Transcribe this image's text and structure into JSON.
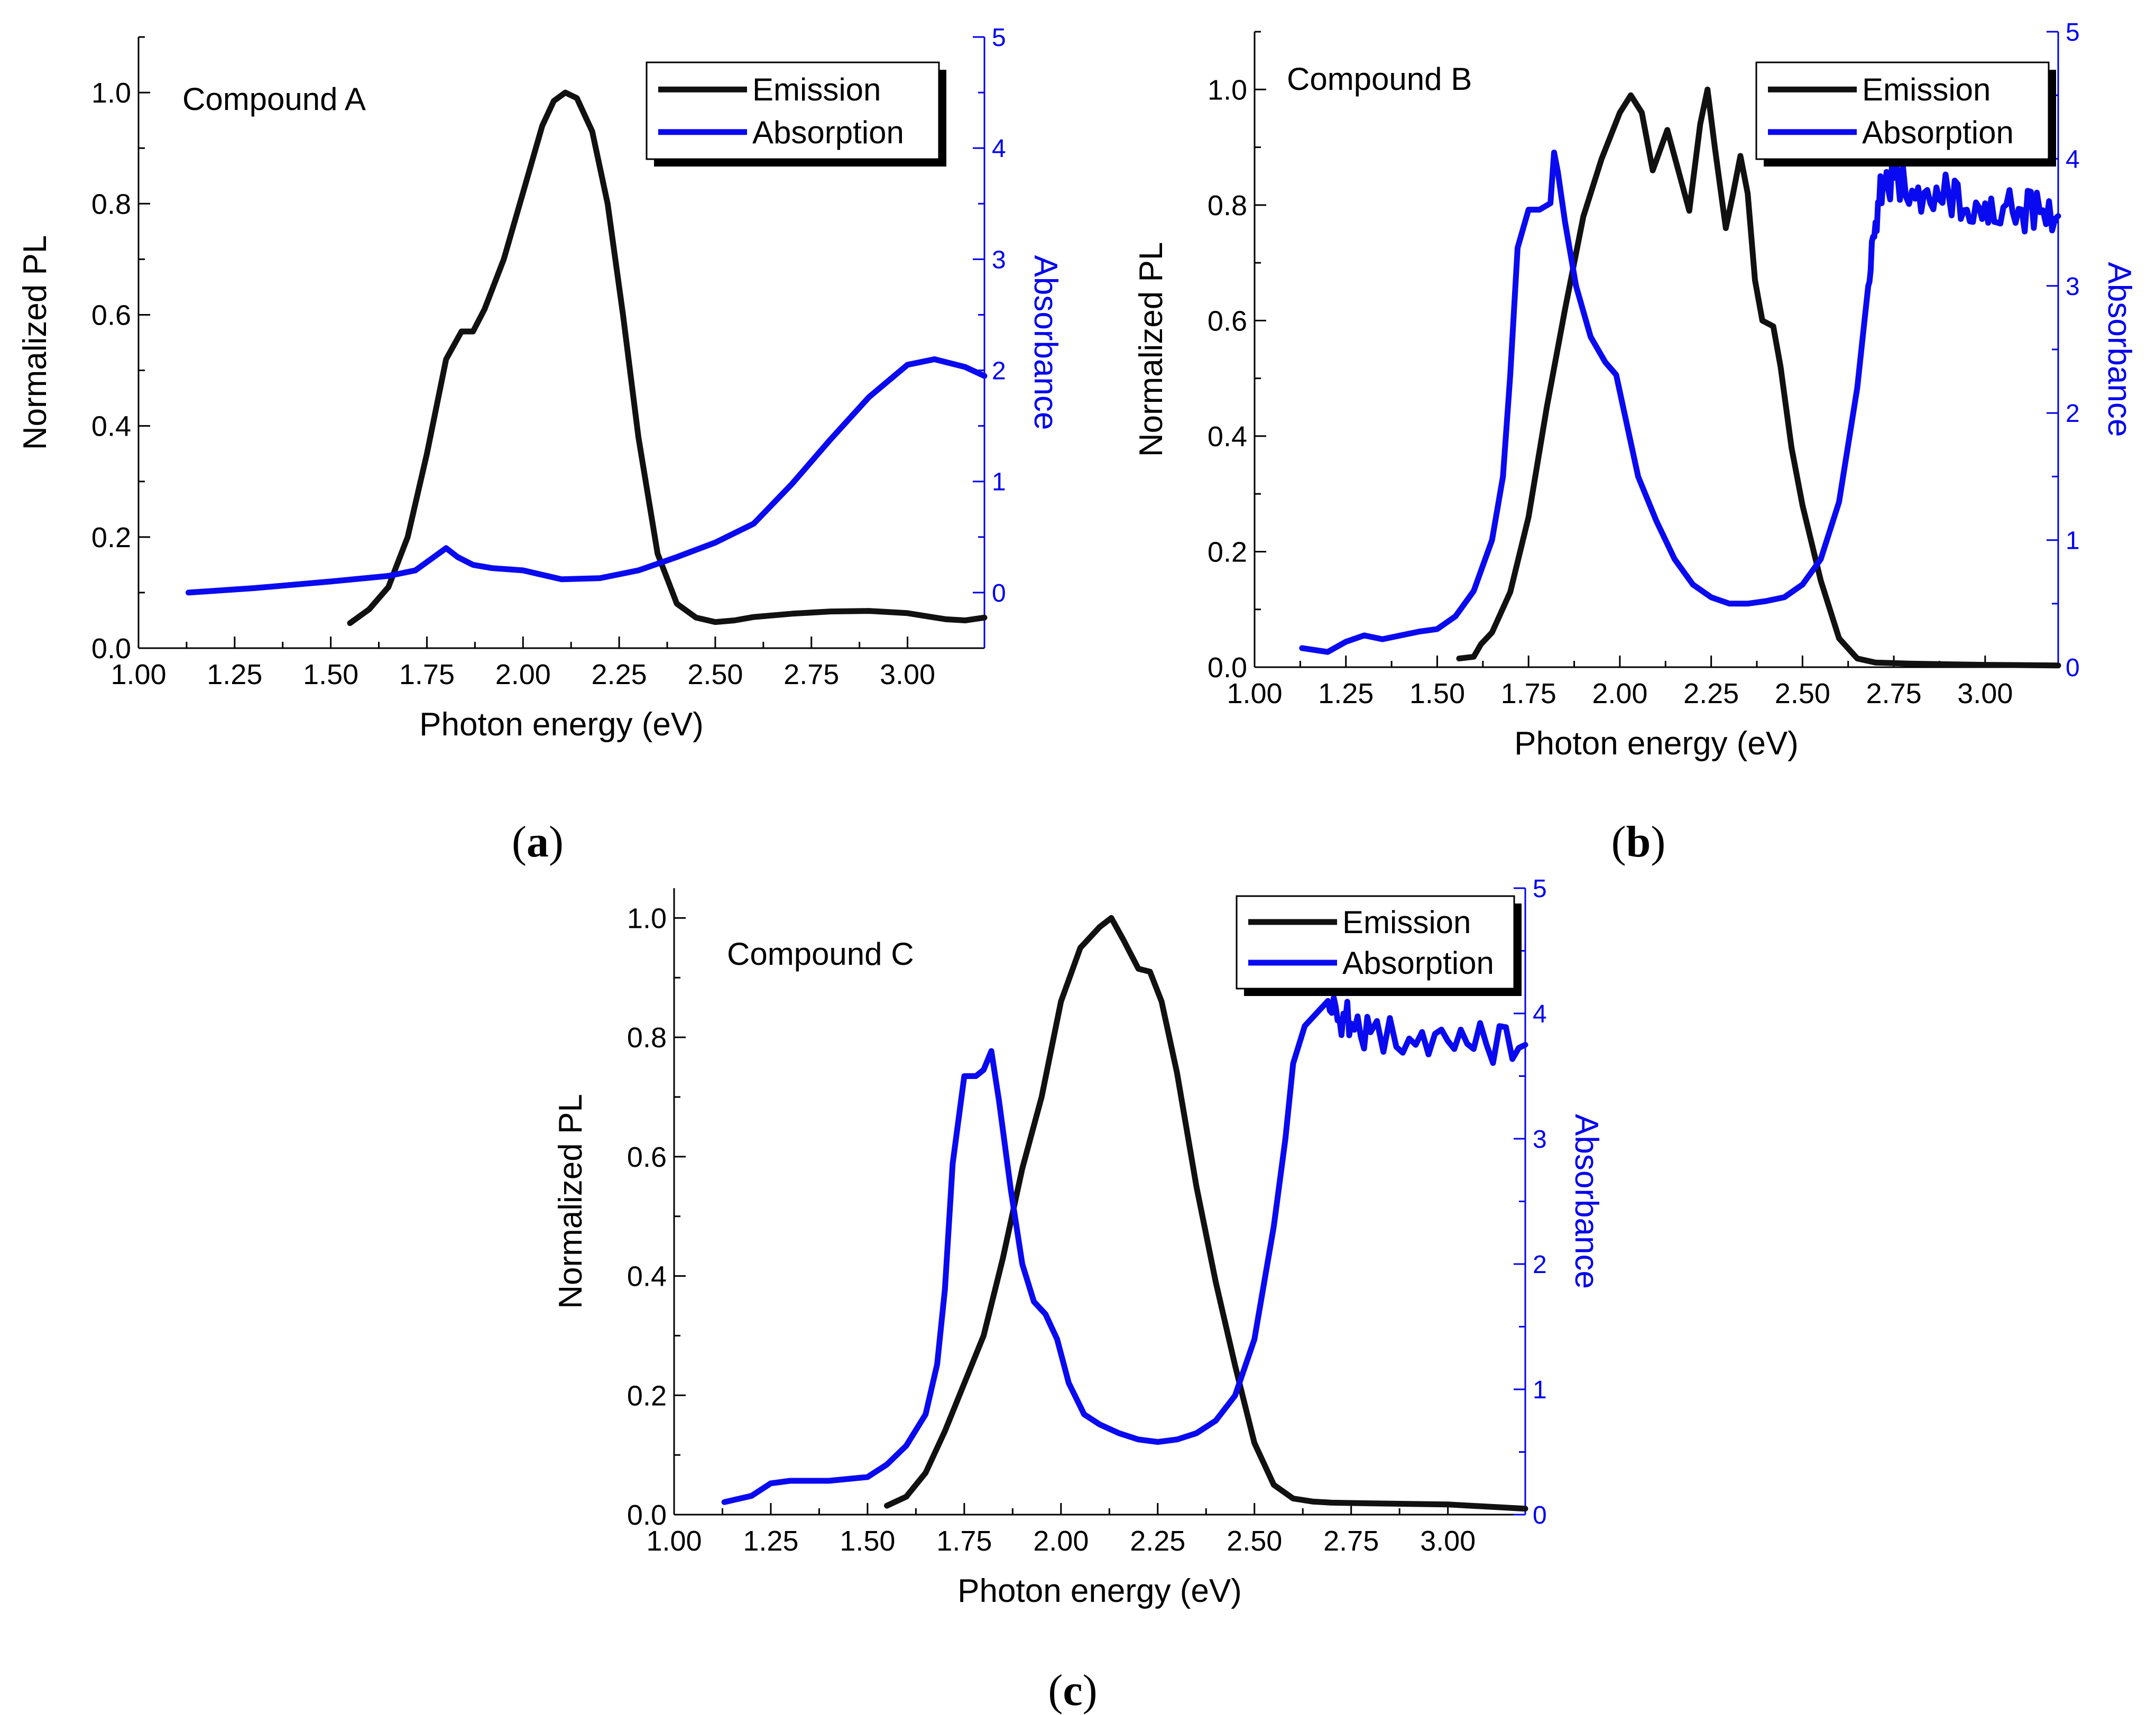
{
  "colors": {
    "emission": "#111111",
    "absorption": "#0a0af0",
    "right_axis": "#0000ee"
  },
  "figure_labels": {
    "a": "a",
    "b": "b",
    "c": "c",
    "open": "(",
    "close": ")"
  },
  "chart_data": [
    {
      "type": "line",
      "annotation": "Compound A",
      "xlabel": "Photon energy (eV)",
      "ylabel": "Normalized PL",
      "y2label": "Absorbance",
      "xlim": [
        1.0,
        3.2
      ],
      "ylim": [
        0.0,
        1.1
      ],
      "y2lim": [
        -0.5,
        5
      ],
      "xticks": [
        "1.00",
        "1.25",
        "1.50",
        "1.75",
        "2.00",
        "2.25",
        "2.50",
        "2.75",
        "3.00"
      ],
      "yticks": [
        "0.0",
        "0.2",
        "0.4",
        "0.6",
        "0.8",
        "1.0"
      ],
      "y2ticks": [
        "0",
        "1",
        "2",
        "3",
        "4",
        "5"
      ],
      "legend": [
        "Emission",
        "Absorption"
      ],
      "series": [
        {
          "name": "Emission",
          "axis": "left",
          "x": [
            1.55,
            1.6,
            1.65,
            1.7,
            1.75,
            1.8,
            1.84,
            1.87,
            1.9,
            1.95,
            2.0,
            2.05,
            2.08,
            2.11,
            2.14,
            2.18,
            2.22,
            2.26,
            2.3,
            2.35,
            2.4,
            2.45,
            2.5,
            2.55,
            2.6,
            2.7,
            2.8,
            2.9,
            3.0,
            3.1,
            3.15,
            3.2
          ],
          "y": [
            0.045,
            0.07,
            0.11,
            0.2,
            0.35,
            0.52,
            0.57,
            0.57,
            0.61,
            0.7,
            0.82,
            0.94,
            0.985,
            1.0,
            0.99,
            0.93,
            0.8,
            0.6,
            0.38,
            0.17,
            0.08,
            0.055,
            0.047,
            0.05,
            0.056,
            0.062,
            0.066,
            0.067,
            0.063,
            0.052,
            0.05,
            0.055
          ]
        },
        {
          "name": "Absorption",
          "axis": "right",
          "x": [
            1.13,
            1.3,
            1.5,
            1.65,
            1.72,
            1.76,
            1.8,
            1.83,
            1.87,
            1.92,
            2.0,
            2.1,
            2.2,
            2.3,
            2.4,
            2.5,
            2.6,
            2.7,
            2.8,
            2.9,
            3.0,
            3.07,
            3.15,
            3.2
          ],
          "y": [
            0.0,
            0.04,
            0.1,
            0.15,
            0.2,
            0.3,
            0.4,
            0.32,
            0.25,
            0.22,
            0.2,
            0.12,
            0.13,
            0.2,
            0.32,
            0.45,
            0.62,
            0.98,
            1.38,
            1.76,
            2.05,
            2.1,
            2.03,
            1.95
          ]
        }
      ]
    },
    {
      "type": "line",
      "annotation": "Compound B",
      "xlabel": "Photon energy (eV)",
      "ylabel": "Normalized PL",
      "y2label": "Absorbance",
      "xlim": [
        1.0,
        3.2
      ],
      "ylim": [
        0.0,
        1.1
      ],
      "y2lim": [
        0,
        5
      ],
      "xticks": [
        "1.00",
        "1.25",
        "1.50",
        "1.75",
        "2.00",
        "2.25",
        "2.50",
        "2.75",
        "3.00"
      ],
      "yticks": [
        "0.0",
        "0.2",
        "0.4",
        "0.6",
        "0.8",
        "1.0"
      ],
      "y2ticks": [
        "0",
        "1",
        "2",
        "3",
        "4",
        "5"
      ],
      "legend": [
        "Emission",
        "Absorption"
      ],
      "series": [
        {
          "name": "Emission",
          "axis": "left",
          "x": [
            1.56,
            1.6,
            1.62,
            1.65,
            1.7,
            1.75,
            1.8,
            1.85,
            1.9,
            1.95,
            2.0,
            2.03,
            2.06,
            2.09,
            2.13,
            2.16,
            2.19,
            2.22,
            2.24,
            2.26,
            2.29,
            2.31,
            2.33,
            2.35,
            2.37,
            2.39,
            2.42,
            2.44,
            2.47,
            2.5,
            2.55,
            2.6,
            2.65,
            2.7,
            2.8,
            3.0,
            3.2
          ],
          "y": [
            0.015,
            0.018,
            0.04,
            0.06,
            0.13,
            0.26,
            0.45,
            0.62,
            0.78,
            0.88,
            0.96,
            0.99,
            0.96,
            0.86,
            0.93,
            0.86,
            0.79,
            0.94,
            1.0,
            0.9,
            0.76,
            0.82,
            0.885,
            0.82,
            0.67,
            0.6,
            0.59,
            0.52,
            0.38,
            0.28,
            0.15,
            0.05,
            0.015,
            0.008,
            0.006,
            0.004,
            0.003
          ]
        },
        {
          "name": "Absorption",
          "axis": "right",
          "x": [
            1.13,
            1.2,
            1.25,
            1.3,
            1.35,
            1.4,
            1.45,
            1.5,
            1.55,
            1.6,
            1.65,
            1.68,
            1.7,
            1.72,
            1.75,
            1.78,
            1.81,
            1.82,
            1.83,
            1.85,
            1.88,
            1.92,
            1.96,
            1.99,
            2.02,
            2.05,
            2.1,
            2.15,
            2.2,
            2.25,
            2.3,
            2.35,
            2.4,
            2.45,
            2.5,
            2.55,
            2.6,
            2.65,
            2.68,
            2.7,
            2.72,
            2.75,
            2.8,
            2.85,
            2.9,
            2.95,
            3.0,
            3.05,
            3.1,
            3.15,
            3.2
          ],
          "y": [
            0.15,
            0.12,
            0.2,
            0.25,
            0.22,
            0.25,
            0.28,
            0.3,
            0.4,
            0.6,
            1.0,
            1.5,
            2.3,
            3.3,
            3.6,
            3.6,
            3.65,
            4.05,
            3.9,
            3.5,
            3.0,
            2.6,
            2.4,
            2.3,
            1.9,
            1.5,
            1.15,
            0.85,
            0.65,
            0.55,
            0.5,
            0.5,
            0.52,
            0.55,
            0.65,
            0.85,
            1.3,
            2.2,
            3.0,
            3.5,
            3.8,
            3.85,
            3.75,
            3.65,
            3.72,
            3.6,
            3.65,
            3.62,
            3.6,
            3.58,
            3.55
          ]
        }
      ]
    },
    {
      "type": "line",
      "annotation": "Compound C",
      "xlabel": "Photon energy (eV)",
      "ylabel": "Normalized PL",
      "y2label": "Absorbance",
      "xlim": [
        1.0,
        3.2
      ],
      "ylim": [
        0.0,
        1.05
      ],
      "y2lim": [
        0,
        5
      ],
      "xticks": [
        "1.00",
        "1.25",
        "1.50",
        "1.75",
        "2.00",
        "2.25",
        "2.50",
        "2.75",
        "3.00"
      ],
      "yticks": [
        "0.0",
        "0.2",
        "0.4",
        "0.6",
        "0.8",
        "1.0"
      ],
      "y2ticks": [
        "0",
        "1",
        "2",
        "3",
        "4",
        "5"
      ],
      "legend": [
        "Emission",
        "Absorption"
      ],
      "series": [
        {
          "name": "Emission",
          "axis": "left",
          "x": [
            1.55,
            1.6,
            1.65,
            1.7,
            1.75,
            1.8,
            1.85,
            1.9,
            1.95,
            2.0,
            2.05,
            2.1,
            2.13,
            2.16,
            2.2,
            2.23,
            2.26,
            2.3,
            2.35,
            2.4,
            2.45,
            2.5,
            2.55,
            2.6,
            2.65,
            2.7,
            2.8,
            3.0,
            3.2
          ],
          "y": [
            0.015,
            0.03,
            0.07,
            0.14,
            0.22,
            0.3,
            0.43,
            0.58,
            0.7,
            0.86,
            0.95,
            0.985,
            1.0,
            0.965,
            0.915,
            0.91,
            0.86,
            0.74,
            0.55,
            0.39,
            0.25,
            0.12,
            0.05,
            0.027,
            0.022,
            0.02,
            0.019,
            0.017,
            0.01
          ]
        },
        {
          "name": "Absorption",
          "axis": "right",
          "x": [
            1.13,
            1.2,
            1.25,
            1.3,
            1.4,
            1.5,
            1.55,
            1.6,
            1.65,
            1.68,
            1.7,
            1.72,
            1.75,
            1.78,
            1.8,
            1.82,
            1.84,
            1.87,
            1.9,
            1.93,
            1.96,
            1.99,
            2.02,
            2.06,
            2.1,
            2.15,
            2.2,
            2.25,
            2.3,
            2.35,
            2.4,
            2.45,
            2.5,
            2.55,
            2.58,
            2.6,
            2.63,
            2.66,
            2.69,
            2.72,
            2.75,
            2.8,
            2.9,
            3.0,
            3.1,
            3.2
          ],
          "y": [
            0.1,
            0.15,
            0.25,
            0.27,
            0.27,
            0.3,
            0.4,
            0.55,
            0.8,
            1.2,
            1.8,
            2.8,
            3.5,
            3.5,
            3.55,
            3.7,
            3.3,
            2.6,
            2.0,
            1.7,
            1.6,
            1.4,
            1.05,
            0.8,
            0.72,
            0.65,
            0.6,
            0.58,
            0.6,
            0.65,
            0.75,
            0.95,
            1.4,
            2.3,
            3.0,
            3.6,
            3.9,
            4.0,
            4.1,
            3.95,
            3.92,
            3.85,
            3.8,
            3.78,
            3.75,
            3.75
          ]
        }
      ]
    }
  ]
}
